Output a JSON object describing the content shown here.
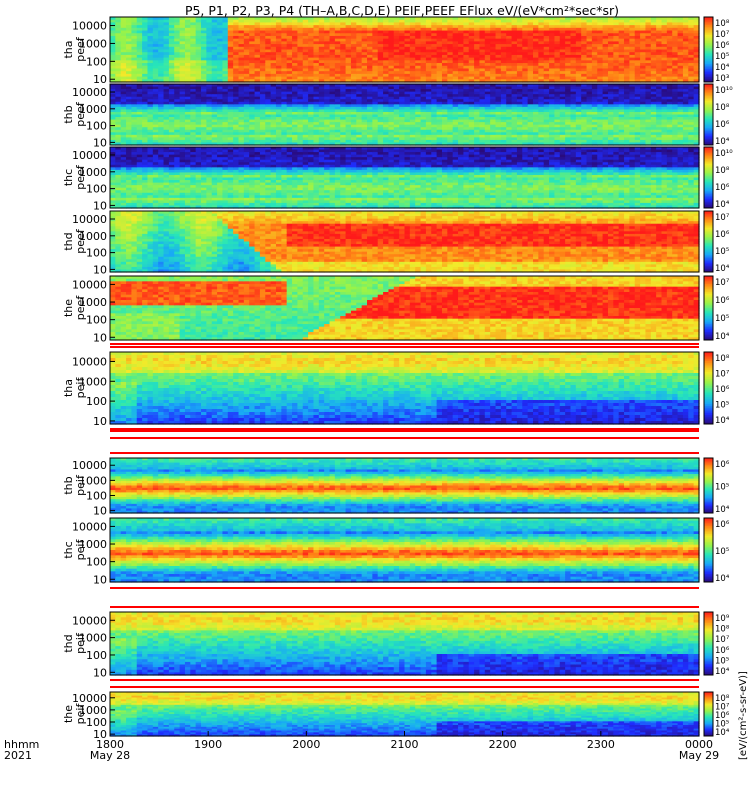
{
  "title": "P5, P1, P2, P3, P4 (TH–A,B,C,D,E) PEIF,PEEF EFlux eV/(eV*cm²*sec*sr)",
  "time_axis": {
    "row_label_1": "hhmm",
    "row_label_2": "2021",
    "ticks": [
      {
        "hhmm": "1800",
        "date": "May 28"
      },
      {
        "hhmm": "1900",
        "date": ""
      },
      {
        "hhmm": "2000",
        "date": ""
      },
      {
        "hhmm": "2100",
        "date": ""
      },
      {
        "hhmm": "2200",
        "date": ""
      },
      {
        "hhmm": "2300",
        "date": ""
      },
      {
        "hhmm": "0000",
        "date": "May 29"
      }
    ]
  },
  "colorbar_side_label": "[eV/(cm²-s-sr-eV)]",
  "colors": {
    "scale": [
      "#2a0a78",
      "#1f2dff",
      "#19a9f6",
      "#27e6b8",
      "#97f34a",
      "#f2ea2a",
      "#ff8a16",
      "#ff1a1a"
    ],
    "fill_bar": "#ff0000",
    "frame": "#000000"
  },
  "chart_data": {
    "type": "heatmap",
    "x_range": [
      "2021-05-28 18:00",
      "2021-05-29 00:00"
    ],
    "y_scale": "log",
    "y_unit": "eV",
    "panels": [
      {
        "probe": "tha",
        "product": "peef",
        "label_1": "tha",
        "label_2": "peef",
        "ylim": [
          7,
          30000
        ],
        "yticks": [
          "10000",
          "1000",
          "100",
          "10"
        ],
        "cbar_range": [
          1000,
          100000000
        ],
        "cbar_ticks": [
          "10⁸",
          "10⁷",
          "10⁶",
          "10⁵",
          "10⁴",
          "10³"
        ],
        "kind": "tha_e"
      },
      {
        "probe": "thb",
        "product": "peef",
        "label_1": "thb",
        "label_2": "peef",
        "ylim": [
          7,
          30000
        ],
        "yticks": [
          "10000",
          "1000",
          "100",
          "10"
        ],
        "cbar_range": [
          10000,
          10000000000
        ],
        "cbar_ticks": [
          "10¹⁰",
          "10⁸",
          "10⁶",
          "10⁴"
        ],
        "kind": "thbc_e"
      },
      {
        "probe": "thc",
        "product": "peef",
        "label_1": "thc",
        "label_2": "peef",
        "ylim": [
          7,
          30000
        ],
        "yticks": [
          "10000",
          "1000",
          "100",
          "10"
        ],
        "cbar_range": [
          10000,
          10000000000
        ],
        "cbar_ticks": [
          "10¹⁰",
          "10⁸",
          "10⁶",
          "10⁴"
        ],
        "kind": "thbc_e"
      },
      {
        "probe": "thd",
        "product": "peef",
        "label_1": "thd",
        "label_2": "peef",
        "ylim": [
          7,
          30000
        ],
        "yticks": [
          "10000",
          "1000",
          "100",
          "10"
        ],
        "cbar_range": [
          10000,
          10000000
        ],
        "cbar_ticks": [
          "10⁷",
          "10⁶",
          "10⁵",
          "10⁴"
        ],
        "kind": "thd_e"
      },
      {
        "probe": "the",
        "product": "peef",
        "label_1": "the",
        "label_2": "peef",
        "ylim": [
          7,
          30000
        ],
        "yticks": [
          "10000",
          "1000",
          "100",
          "10"
        ],
        "cbar_range": [
          10000,
          10000000
        ],
        "cbar_ticks": [
          "10⁷",
          "10⁶",
          "10⁵",
          "10⁴"
        ],
        "kind": "the_e"
      },
      {
        "probe": "tha",
        "product": "peif",
        "label_1": "tha",
        "label_2": "peif",
        "ylim": [
          7,
          30000
        ],
        "yticks": [
          "10000",
          "1000",
          "100",
          "10"
        ],
        "cbar_range": [
          10000,
          100000000
        ],
        "cbar_ticks": [
          "10⁸",
          "10⁷",
          "10⁶",
          "10⁵",
          "10⁴"
        ],
        "kind": "ion_quiet"
      },
      {
        "probe": "thb",
        "product": "peif",
        "label_1": "thb",
        "label_2": "peif",
        "ylim": [
          7,
          30000
        ],
        "yticks": [
          "10000",
          "1000",
          "100",
          "10"
        ],
        "cbar_range": [
          10000,
          1000000
        ],
        "cbar_ticks": [
          "10⁶",
          "10⁵",
          "10⁴"
        ],
        "kind": "ion_band"
      },
      {
        "probe": "thc",
        "product": "peif",
        "label_1": "thc",
        "label_2": "peif",
        "ylim": [
          7,
          30000
        ],
        "yticks": [
          "10000",
          "1000",
          "100",
          "10"
        ],
        "cbar_range": [
          10000,
          1000000
        ],
        "cbar_ticks": [
          "10⁶",
          "10⁵",
          "10⁴"
        ],
        "kind": "ion_band"
      },
      {
        "probe": "thd",
        "product": "peif",
        "label_1": "thd",
        "label_2": "peif",
        "ylim": [
          7,
          30000
        ],
        "yticks": [
          "10000",
          "1000",
          "100",
          "10"
        ],
        "cbar_range": [
          10000,
          1000000000
        ],
        "cbar_ticks": [
          "10⁹",
          "10⁸",
          "10⁷",
          "10⁶",
          "10⁵",
          "10⁴"
        ],
        "kind": "ion_quiet"
      },
      {
        "probe": "the",
        "product": "peif",
        "label_1": "the",
        "label_2": "peif",
        "ylim": [
          7,
          30000
        ],
        "yticks": [
          "10000",
          "1000",
          "100",
          "10"
        ],
        "cbar_range": [
          10000,
          100000000
        ],
        "cbar_ticks": [
          "10⁸",
          "10⁷",
          "10⁶",
          "10⁵",
          "10⁴"
        ],
        "kind": "ion_quiet"
      }
    ]
  }
}
